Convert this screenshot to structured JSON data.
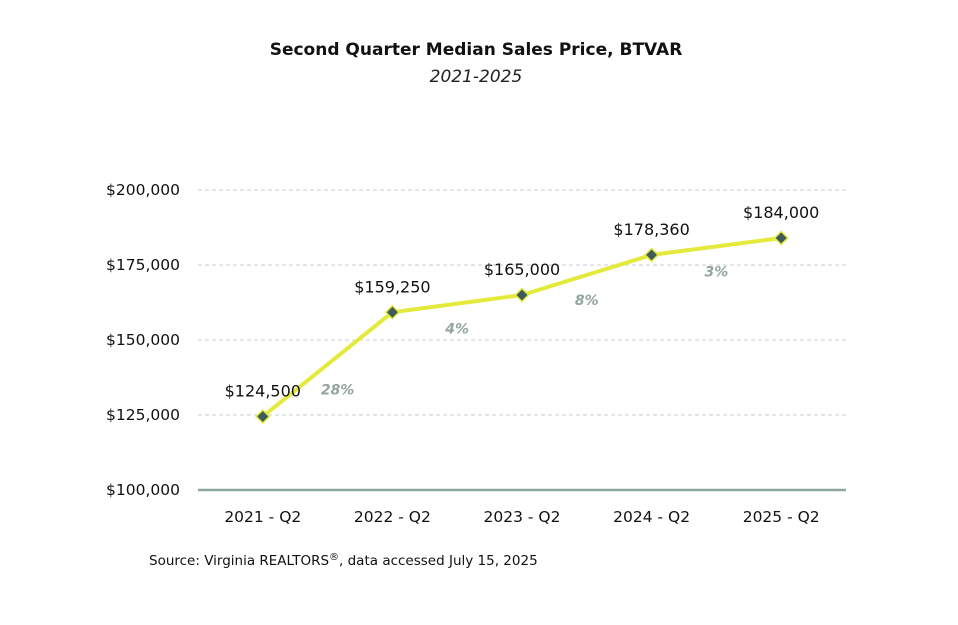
{
  "chart_data": {
    "type": "line",
    "title": "Second Quarter Median Sales Price, BTVAR",
    "subtitle": "2021-2025",
    "categories": [
      "2021 - Q2",
      "2022 - Q2",
      "2023 - Q2",
      "2024 - Q2",
      "2025 - Q2"
    ],
    "values": [
      124500,
      159250,
      165000,
      178360,
      184000
    ],
    "data_labels": [
      "$124,500",
      "$159,250",
      "$165,000",
      "$178,360",
      "$184,000"
    ],
    "change_labels": [
      "28%",
      "4%",
      "8%",
      "3%"
    ],
    "y_ticks": [
      100000,
      125000,
      150000,
      175000,
      200000
    ],
    "y_tick_labels": [
      "$100,000",
      "$125,000",
      "$150,000",
      "$175,000",
      "$200,000"
    ],
    "ylim": [
      100000,
      200000
    ],
    "grid": true,
    "colors": {
      "line": "#e3ea3c",
      "marker_fill": "#3f5a5a",
      "marker_stroke": "#e3ea3c",
      "gridline": "#cccccc",
      "baseline": "#8fa89f",
      "change_label": "#93a59e"
    }
  },
  "source": {
    "prefix": "Source: Virginia REALTORS",
    "mark": "®",
    "suffix": ", data accessed July 15, 2025"
  }
}
